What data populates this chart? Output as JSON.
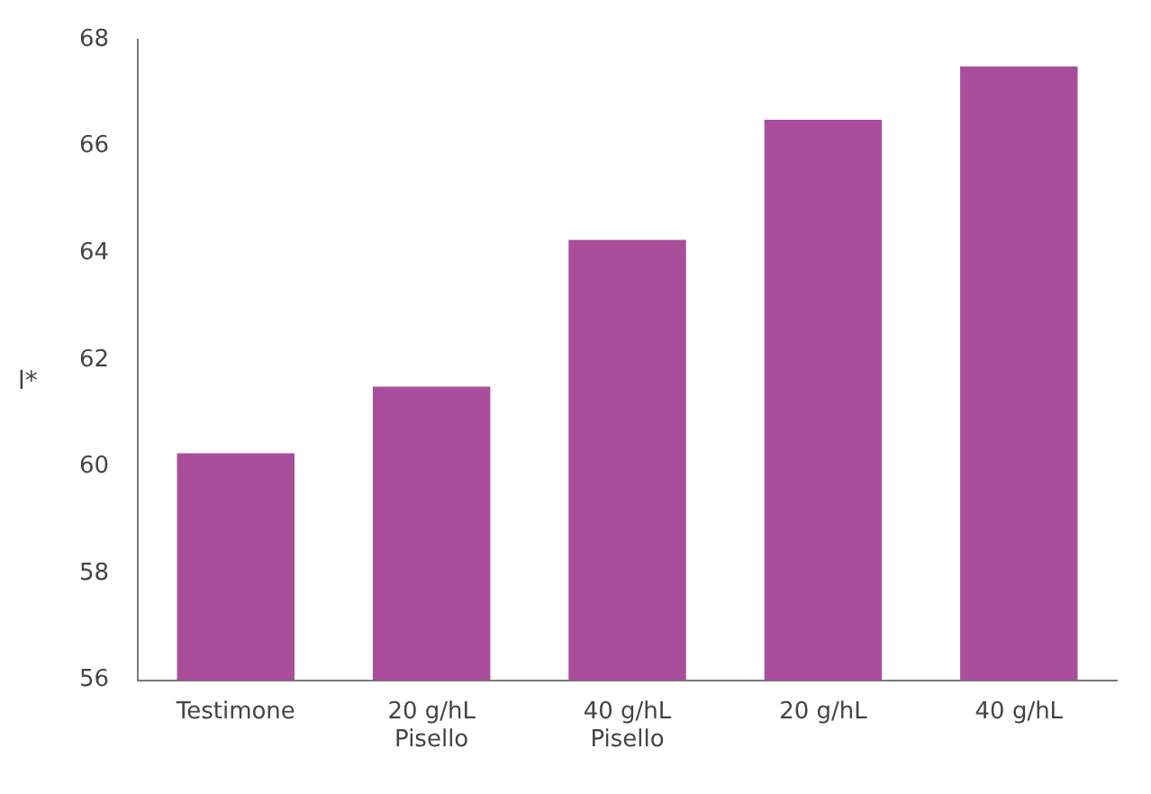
{
  "chart_data": {
    "type": "bar",
    "ylabel": "l*",
    "categories": [
      "Testimone",
      "20 g/hL\nPisello",
      "40 g/hL\nPisello",
      "20 g/hL",
      "40 g/hL"
    ],
    "values": [
      60.25,
      61.5,
      64.25,
      66.5,
      67.5
    ],
    "color": "#aa4d9b",
    "ylim": [
      56,
      68
    ],
    "yticks": [
      56,
      58,
      60,
      62,
      64,
      66,
      68
    ],
    "grid": false,
    "legend": false
  }
}
